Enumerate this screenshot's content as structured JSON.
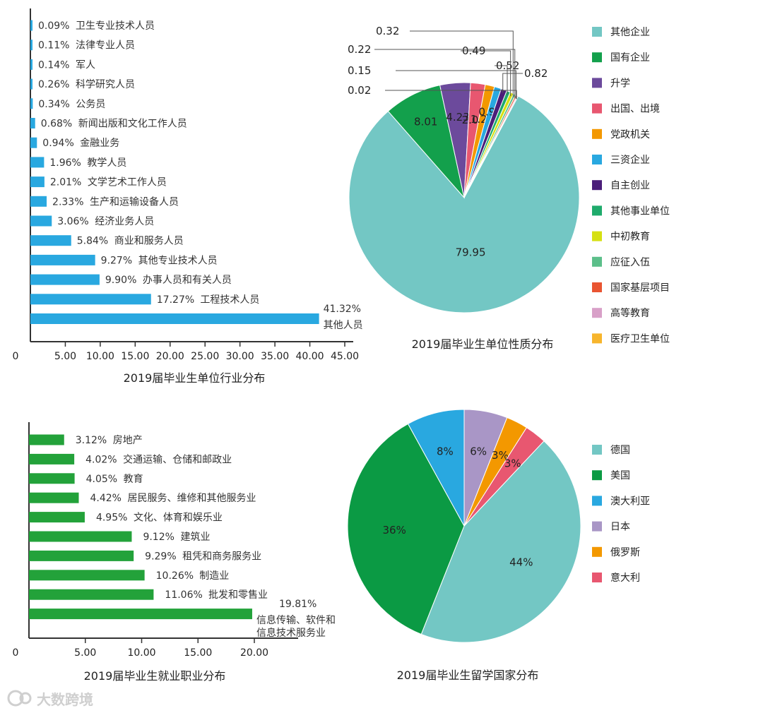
{
  "watermark": "大数跨境",
  "chart_data": [
    {
      "id": "industry",
      "type": "bar",
      "orientation": "horizontal",
      "title": "2019届毕业生单位行业分布",
      "color": "#29a8e0",
      "categories": [
        "卫生专业技术人员",
        "法律专业人员",
        "军人",
        "科学研究人员",
        "公务员",
        "新闻出版和文化工作人员",
        "金融业务",
        "教学人员",
        "文学艺术工作人员",
        "生产和运输设备人员",
        "经济业务人员",
        "商业和服务人员",
        "其他专业技术人员",
        "办事人员和有关人员",
        "工程技术人员",
        "其他人员"
      ],
      "values": [
        0.09,
        0.11,
        0.14,
        0.26,
        0.34,
        0.68,
        0.94,
        1.96,
        2.01,
        2.33,
        3.06,
        5.84,
        9.27,
        9.9,
        17.27,
        41.32
      ],
      "value_labels": [
        "0.09%",
        "0.11%",
        "0.14%",
        "0.26%",
        "0.34%",
        "0.68%",
        "0.94%",
        "1.96%",
        "2.01%",
        "2.33%",
        "3.06%",
        "5.84%",
        "9.27%",
        "9.90%",
        "17.27%",
        "41.32%"
      ],
      "xlim": [
        0,
        45
      ],
      "origin_label": "0",
      "xticks": [
        5,
        10,
        15,
        20,
        25,
        30,
        35,
        40,
        45
      ],
      "xtick_labels": [
        "5.00",
        "10.00",
        "15.00",
        "20.00",
        "25.00",
        "30.00",
        "35.00",
        "40.00",
        "45.00"
      ]
    },
    {
      "id": "unit_nature",
      "type": "pie",
      "title": "2019届毕业生单位性质分布",
      "labels": [
        "其他企业",
        "国有企业",
        "升学",
        "出国、出境",
        "党政机关",
        "三资企业",
        "自主创业",
        "其他事业单位",
        "中初教育",
        "应征入伍",
        "国家基层项目",
        "高等教育",
        "医疗卫生单位"
      ],
      "values": [
        79.95,
        8.01,
        4.23,
        2.03,
        1.29,
        0.96,
        0.82,
        0.52,
        0.49,
        0.32,
        0.22,
        0.15,
        0.02
      ],
      "value_labels": [
        "79.95",
        "8.01",
        "4.23",
        "2.03",
        "1.29",
        "0.96",
        "0.82",
        "0.52",
        "0.49",
        "0.32",
        "0.22",
        "0.15",
        "0.02"
      ],
      "colors": [
        "#73c7c4",
        "#13a04c",
        "#6c4a9c",
        "#e85770",
        "#f39800",
        "#29a8e0",
        "#4b1e7a",
        "#1fab6c",
        "#d6e012",
        "#5cbf8a",
        "#e95532",
        "#d8a0c8",
        "#f7b52c"
      ],
      "legend_position": "right"
    },
    {
      "id": "occupation",
      "type": "bar",
      "orientation": "horizontal",
      "title": "2019届毕业生就业职业分布",
      "color": "#23a23a",
      "categories": [
        "房地产",
        "交通运输、仓储和邮政业",
        "教育",
        "居民服务、维修和其他服务业",
        "文化、体育和娱乐业",
        "建筑业",
        "租凭和商务服务业",
        "制造业",
        "批发和零售业",
        "信息传输、软件和信息技术服务业"
      ],
      "category_lines": [
        [
          "房地产"
        ],
        [
          "交通运输、仓储和邮政业"
        ],
        [
          "教育"
        ],
        [
          "居民服务、维修和其他服务业"
        ],
        [
          "文化、体育和娱乐业"
        ],
        [
          "建筑业"
        ],
        [
          "租凭和商务服务业"
        ],
        [
          "制造业"
        ],
        [
          "批发和零售业"
        ],
        [
          "信息传输、软件和",
          "信息技术服务业"
        ]
      ],
      "values": [
        3.12,
        4.02,
        4.05,
        4.42,
        4.95,
        9.12,
        9.29,
        10.26,
        11.06,
        19.81
      ],
      "value_labels": [
        "3.12%",
        "4.02%",
        "4.05%",
        "4.42%",
        "4.95%",
        "9.12%",
        "9.29%",
        "10.26%",
        "11.06%",
        "19.81%"
      ],
      "xlim": [
        0,
        20
      ],
      "origin_label": "0",
      "xticks": [
        5,
        10,
        15,
        20
      ],
      "xtick_labels": [
        "5.00",
        "10.00",
        "15.00",
        "20.00"
      ]
    },
    {
      "id": "study_abroad",
      "type": "pie",
      "title": "2019届毕业生留学国家分布",
      "labels": [
        "德国",
        "美国",
        "澳大利亚",
        "日本",
        "俄罗斯",
        "意大利"
      ],
      "values": [
        44,
        36,
        8,
        6,
        3,
        3
      ],
      "value_labels": [
        "44%",
        "36%",
        "8%",
        "6%",
        "3%",
        "3%"
      ],
      "colors": [
        "#73c7c4",
        "#0b9a44",
        "#29a8e0",
        "#a996c6",
        "#f39800",
        "#e85770"
      ],
      "legend_position": "right"
    }
  ]
}
